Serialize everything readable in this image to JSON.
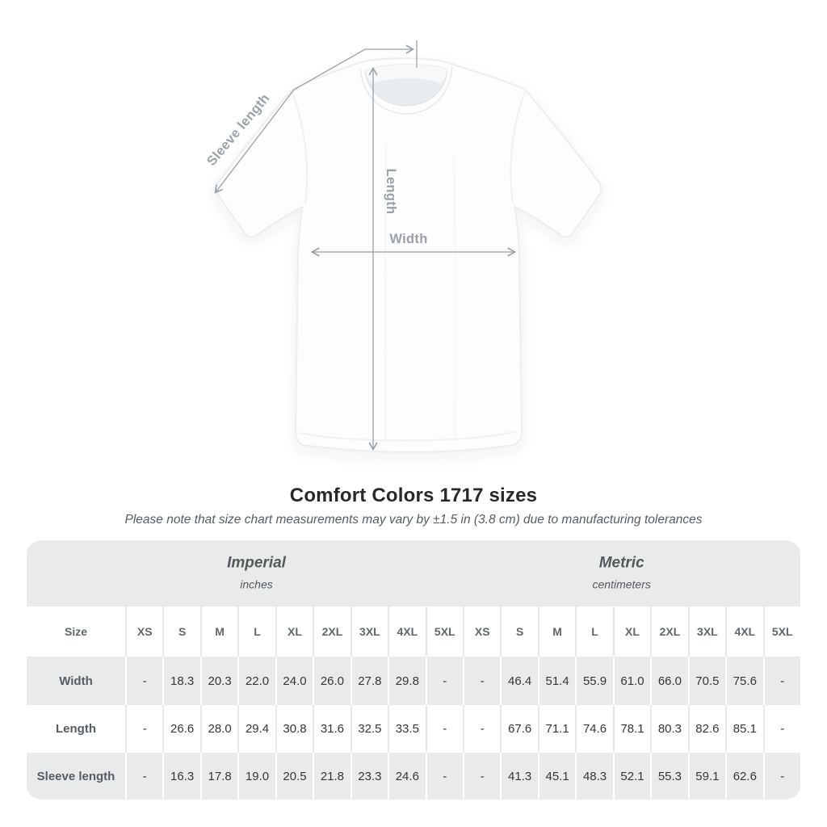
{
  "title": "Comfort Colors 1717 sizes",
  "subtitle": "Please note that size chart measurements may vary by ±1.5 in (3.8 cm) due to manufacturing tolerances",
  "diagram": {
    "sleeve_label": "Sleeve length",
    "length_label": "Length",
    "width_label": "Width",
    "annotation_color": "#9aa1a7",
    "shirt_color": "#fdfdfd"
  },
  "chart_data": {
    "type": "table",
    "title": "Comfort Colors 1717 sizes",
    "note": "Please note that size chart measurements may vary by ±1.5 in (3.8 cm) due to manufacturing tolerances",
    "size_label": "Size",
    "sizes": [
      "XS",
      "S",
      "M",
      "L",
      "XL",
      "2XL",
      "3XL",
      "4XL",
      "5XL"
    ],
    "sections": [
      {
        "name": "Imperial",
        "unit": "inches"
      },
      {
        "name": "Metric",
        "unit": "centimeters"
      }
    ],
    "rows": [
      {
        "label": "Width",
        "imperial": [
          "-",
          "18.3",
          "20.3",
          "22.0",
          "24.0",
          "26.0",
          "27.8",
          "29.8",
          "-"
        ],
        "metric": [
          "-",
          "46.4",
          "51.4",
          "55.9",
          "61.0",
          "66.0",
          "70.5",
          "75.6",
          "-"
        ]
      },
      {
        "label": "Length",
        "imperial": [
          "-",
          "26.6",
          "28.0",
          "29.4",
          "30.8",
          "31.6",
          "32.5",
          "33.5",
          "-"
        ],
        "metric": [
          "-",
          "67.6",
          "71.1",
          "74.6",
          "78.1",
          "80.3",
          "82.6",
          "85.1",
          "-"
        ]
      },
      {
        "label": "Sleeve length",
        "imperial": [
          "-",
          "16.3",
          "17.8",
          "19.0",
          "20.5",
          "21.8",
          "23.3",
          "24.6",
          "-"
        ],
        "metric": [
          "-",
          "41.3",
          "45.1",
          "48.3",
          "52.1",
          "55.3",
          "59.1",
          "62.6",
          "-"
        ]
      }
    ]
  },
  "colors": {
    "table_band": "#e9eaea",
    "row_alt": "#e9eaea",
    "separator_on_white": "#e6e7e7",
    "separator_on_gray": "#ffffff",
    "title_text": "#26282a",
    "subtitle_text": "#565d63",
    "header_text": "#60676c",
    "value_text": "#33373a"
  }
}
